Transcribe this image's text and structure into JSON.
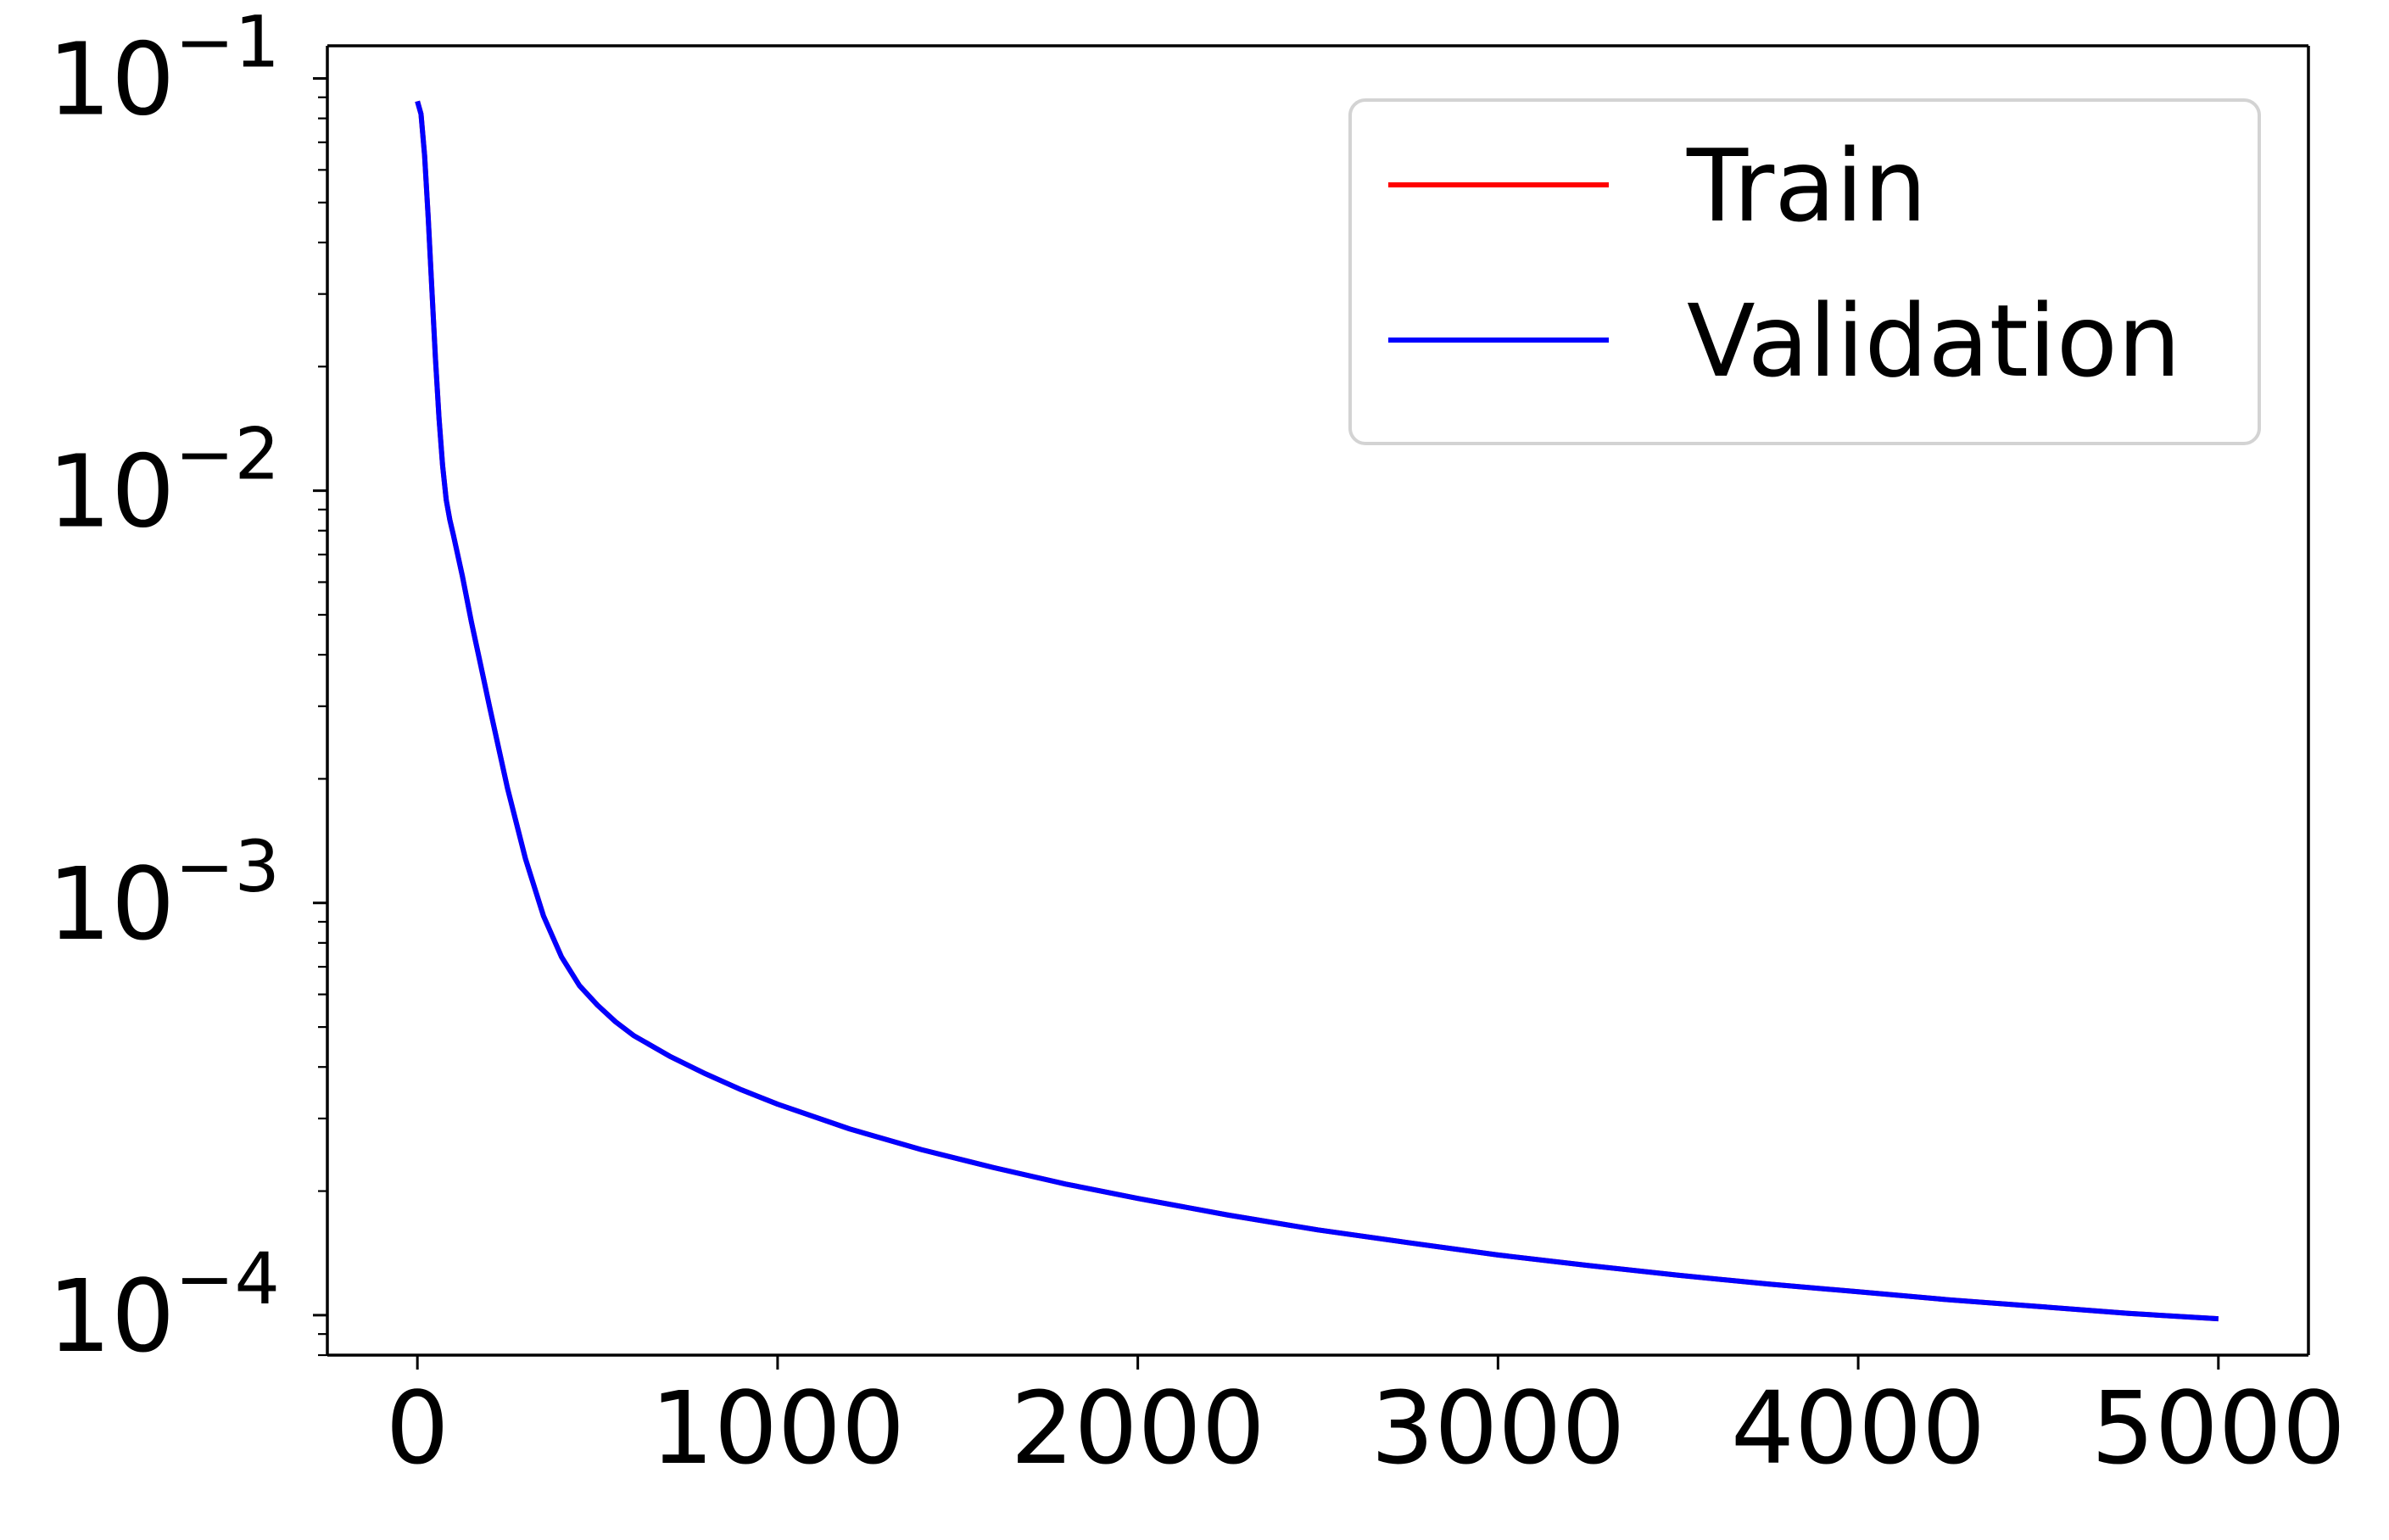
{
  "chart_data": {
    "type": "line",
    "title": "",
    "xlabel": "",
    "ylabel": "",
    "xscale": "linear",
    "yscale": "log",
    "xlim": [
      -250,
      5250
    ],
    "ylim": [
      8e-05,
      0.12
    ],
    "grid": false,
    "legend_position": "top-right",
    "xticks": [
      0,
      1000,
      2000,
      3000,
      4000,
      5000
    ],
    "xtick_labels": [
      "0",
      "1000",
      "2000",
      "3000",
      "4000",
      "5000"
    ],
    "yticks": [
      {
        "value": 0.1,
        "base": "10",
        "exponent": "−1"
      },
      {
        "value": 0.01,
        "base": "10",
        "exponent": "−2"
      },
      {
        "value": 0.001,
        "base": "10",
        "exponent": "−3"
      },
      {
        "value": 0.0001,
        "base": "10",
        "exponent": "−4"
      }
    ],
    "series": [
      {
        "name": "Train",
        "color": "#ff0000",
        "x": [
          0,
          10,
          20,
          30,
          40,
          50,
          60,
          70,
          80,
          90,
          100,
          125,
          150,
          175,
          200,
          250,
          300,
          350,
          400,
          450,
          500,
          550,
          600,
          700,
          800,
          900,
          1000,
          1200,
          1400,
          1600,
          1800,
          2000,
          2250,
          2500,
          2750,
          3000,
          3250,
          3500,
          3750,
          4000,
          4250,
          4500,
          4750,
          5000
        ],
        "y": [
          0.088,
          0.082,
          0.065,
          0.046,
          0.031,
          0.021,
          0.015,
          0.0115,
          0.0095,
          0.0085,
          0.0078,
          0.0062,
          0.0048,
          0.0038,
          0.003,
          0.0019,
          0.00128,
          0.00093,
          0.00074,
          0.00063,
          0.000565,
          0.000515,
          0.000477,
          0.000425,
          0.000385,
          0.000352,
          0.000325,
          0.000283,
          0.000252,
          0.000228,
          0.000208,
          0.000192,
          0.000175,
          0.000161,
          0.00015,
          0.00014,
          0.000132,
          0.000125,
          0.000119,
          0.000114,
          0.000109,
          0.000105,
          0.000101,
          9.8e-05
        ]
      },
      {
        "name": "Validation",
        "color": "#0000ff",
        "x": [
          0,
          10,
          20,
          30,
          40,
          50,
          60,
          70,
          80,
          90,
          100,
          125,
          150,
          175,
          200,
          250,
          300,
          350,
          400,
          450,
          500,
          550,
          600,
          700,
          800,
          900,
          1000,
          1200,
          1400,
          1600,
          1800,
          2000,
          2250,
          2500,
          2750,
          3000,
          3250,
          3500,
          3750,
          4000,
          4250,
          4500,
          4750,
          5000
        ],
        "y": [
          0.088,
          0.082,
          0.065,
          0.046,
          0.031,
          0.021,
          0.015,
          0.0115,
          0.0095,
          0.0085,
          0.0078,
          0.0062,
          0.0048,
          0.0038,
          0.003,
          0.0019,
          0.00128,
          0.00093,
          0.00074,
          0.00063,
          0.000565,
          0.000515,
          0.000477,
          0.000425,
          0.000385,
          0.000352,
          0.000325,
          0.000283,
          0.000252,
          0.000228,
          0.000208,
          0.000192,
          0.000175,
          0.000161,
          0.00015,
          0.00014,
          0.000132,
          0.000125,
          0.000119,
          0.000114,
          0.000109,
          0.000105,
          0.000101,
          9.8e-05
        ]
      }
    ]
  }
}
